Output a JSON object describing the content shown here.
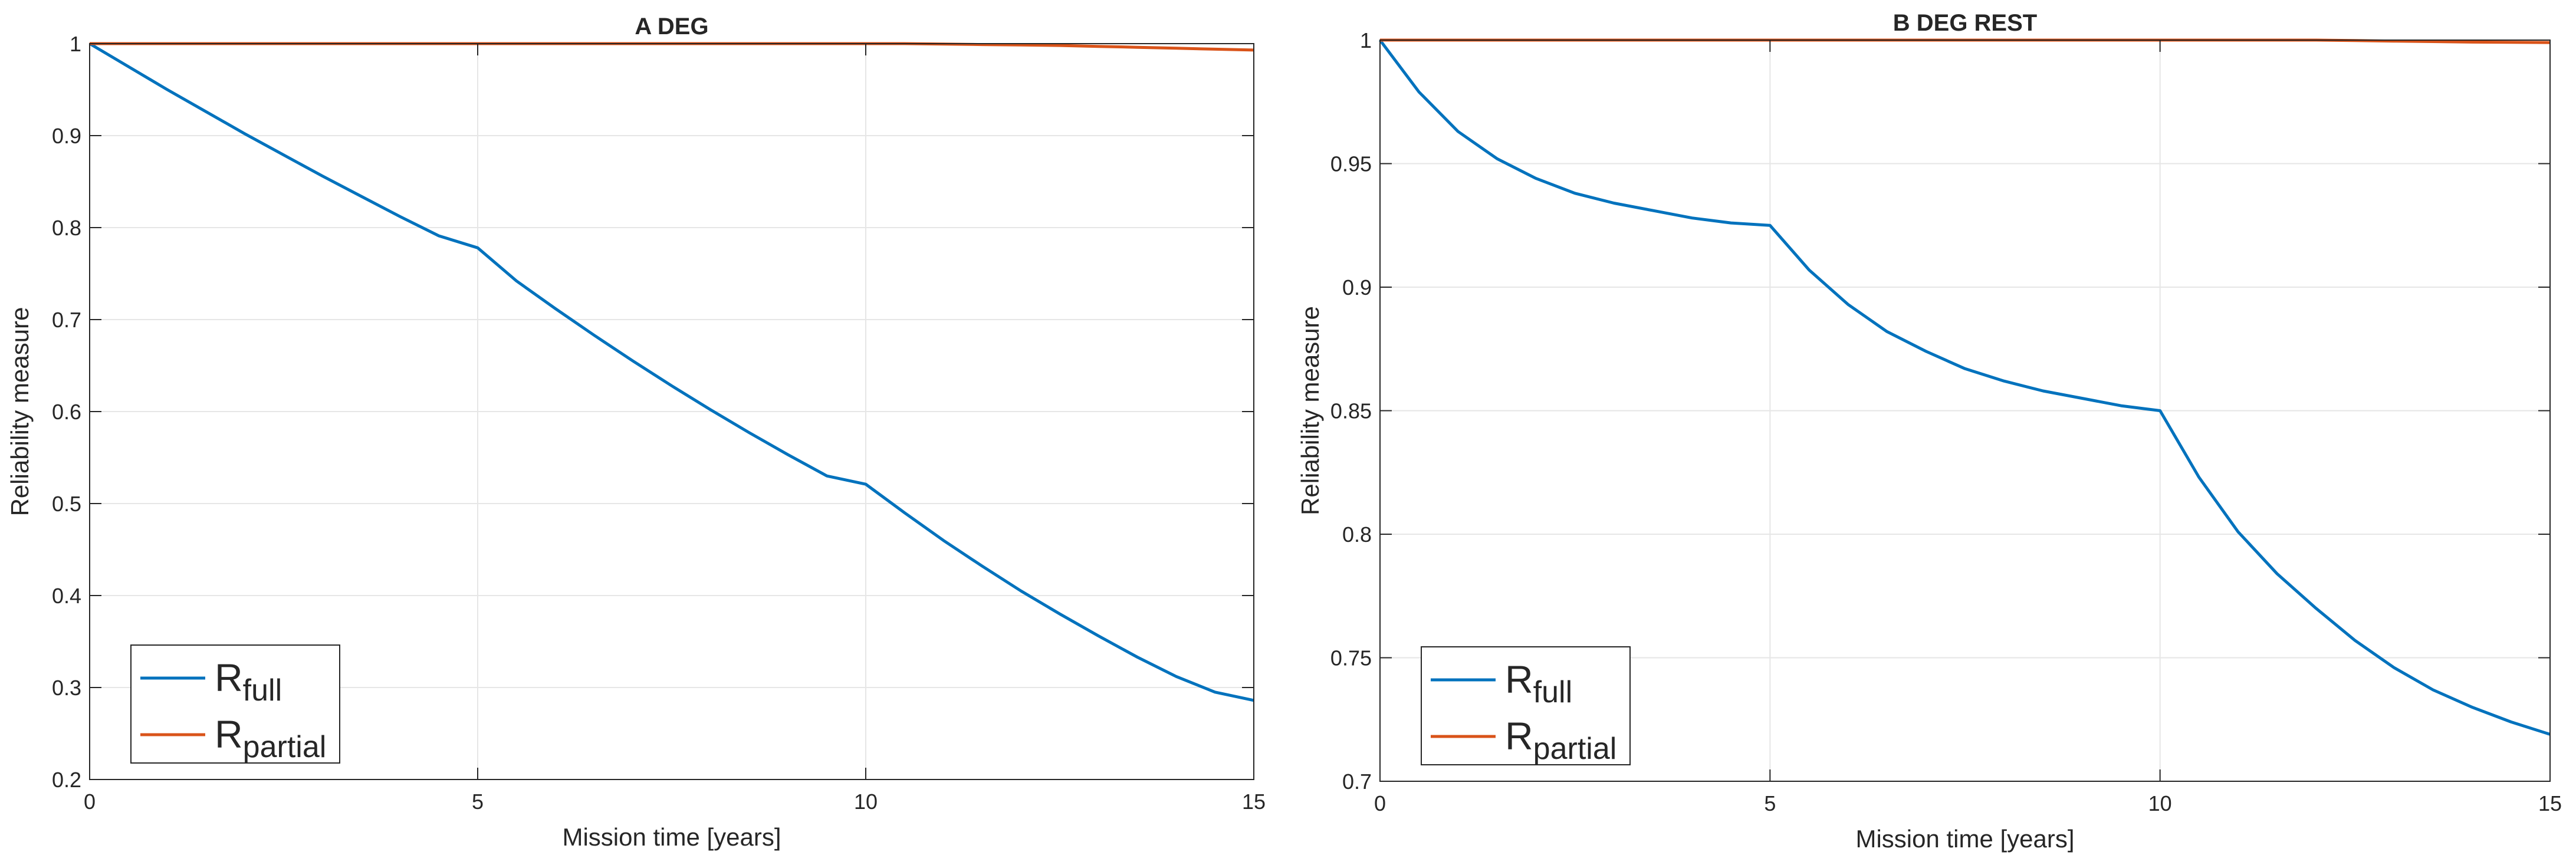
{
  "chart_data": [
    {
      "type": "line",
      "title": "A DEG",
      "xlabel": "Mission time [years]",
      "ylabel": "Reliability measure",
      "xlim": [
        0,
        15
      ],
      "ylim": [
        0.2,
        1
      ],
      "xticks": [
        0,
        5,
        10,
        15
      ],
      "xtick_labels": [
        "0",
        "5",
        "10",
        "15"
      ],
      "yticks": [
        0.2,
        0.3,
        0.4,
        0.5,
        0.6,
        0.7,
        0.8,
        0.9,
        1
      ],
      "ytick_labels": [
        "0.2",
        "0.3",
        "0.4",
        "0.5",
        "0.6",
        "0.7",
        "0.8",
        "0.9",
        "1"
      ],
      "grid": true,
      "legend_position": "bottom-left",
      "x": [
        0,
        0.5,
        1,
        1.5,
        2,
        2.5,
        3,
        3.5,
        4,
        4.5,
        5,
        5.5,
        6,
        6.5,
        7,
        7.5,
        8,
        8.5,
        9,
        9.5,
        10,
        10.5,
        11,
        11.5,
        12,
        12.5,
        13,
        13.5,
        14,
        14.5,
        15
      ],
      "series": [
        {
          "name": "R",
          "subscript": "full",
          "color": "#0072BD",
          "values": [
            1.0,
            0.975,
            0.95,
            0.926,
            0.902,
            0.879,
            0.856,
            0.834,
            0.812,
            0.791,
            0.778,
            0.742,
            0.712,
            0.683,
            0.655,
            0.628,
            0.602,
            0.577,
            0.553,
            0.53,
            0.521,
            0.49,
            0.46,
            0.432,
            0.405,
            0.38,
            0.356,
            0.333,
            0.312,
            0.295,
            0.286
          ]
        },
        {
          "name": "R",
          "subscript": "partial",
          "color": "#D95319",
          "values": [
            1,
            1,
            1,
            1,
            1,
            1,
            1,
            1,
            1,
            1,
            1,
            1,
            1,
            1,
            1,
            1,
            1,
            1,
            1,
            1,
            1,
            1,
            0.9995,
            0.999,
            0.9985,
            0.998,
            0.997,
            0.996,
            0.995,
            0.994,
            0.993
          ]
        }
      ]
    },
    {
      "type": "line",
      "title": "B DEG REST",
      "xlabel": "Mission time [years]",
      "ylabel": "Reliability measure",
      "xlim": [
        0,
        15
      ],
      "ylim": [
        0.7,
        1
      ],
      "xticks": [
        0,
        5,
        10,
        15
      ],
      "xtick_labels": [
        "0",
        "5",
        "10",
        "15"
      ],
      "yticks": [
        0.7,
        0.75,
        0.8,
        0.85,
        0.9,
        0.95,
        1
      ],
      "ytick_labels": [
        "0.7",
        "0.75",
        "0.8",
        "0.85",
        "0.9",
        "0.95",
        "1"
      ],
      "grid": true,
      "legend_position": "bottom-left",
      "x": [
        0,
        0.5,
        1,
        1.5,
        2,
        2.5,
        3,
        3.5,
        4,
        4.5,
        5,
        5.5,
        6,
        6.5,
        7,
        7.5,
        8,
        8.5,
        9,
        9.5,
        10,
        10.5,
        11,
        11.5,
        12,
        12.5,
        13,
        13.5,
        14,
        14.5,
        15
      ],
      "series": [
        {
          "name": "R",
          "subscript": "full",
          "color": "#0072BD",
          "values": [
            1.0,
            0.979,
            0.963,
            0.952,
            0.944,
            0.938,
            0.934,
            0.931,
            0.928,
            0.926,
            0.925,
            0.907,
            0.893,
            0.882,
            0.874,
            0.867,
            0.862,
            0.858,
            0.855,
            0.852,
            0.85,
            0.823,
            0.801,
            0.784,
            0.77,
            0.757,
            0.746,
            0.737,
            0.73,
            0.724,
            0.719
          ]
        },
        {
          "name": "R",
          "subscript": "partial",
          "color": "#D95319",
          "values": [
            1,
            1,
            1,
            1,
            1,
            1,
            1,
            1,
            1,
            1,
            1,
            1,
            1,
            1,
            1,
            1,
            1,
            1,
            1,
            1,
            1,
            1,
            1,
            1,
            1,
            0.9998,
            0.9996,
            0.9994,
            0.9992,
            0.9991,
            0.999
          ]
        }
      ]
    }
  ]
}
